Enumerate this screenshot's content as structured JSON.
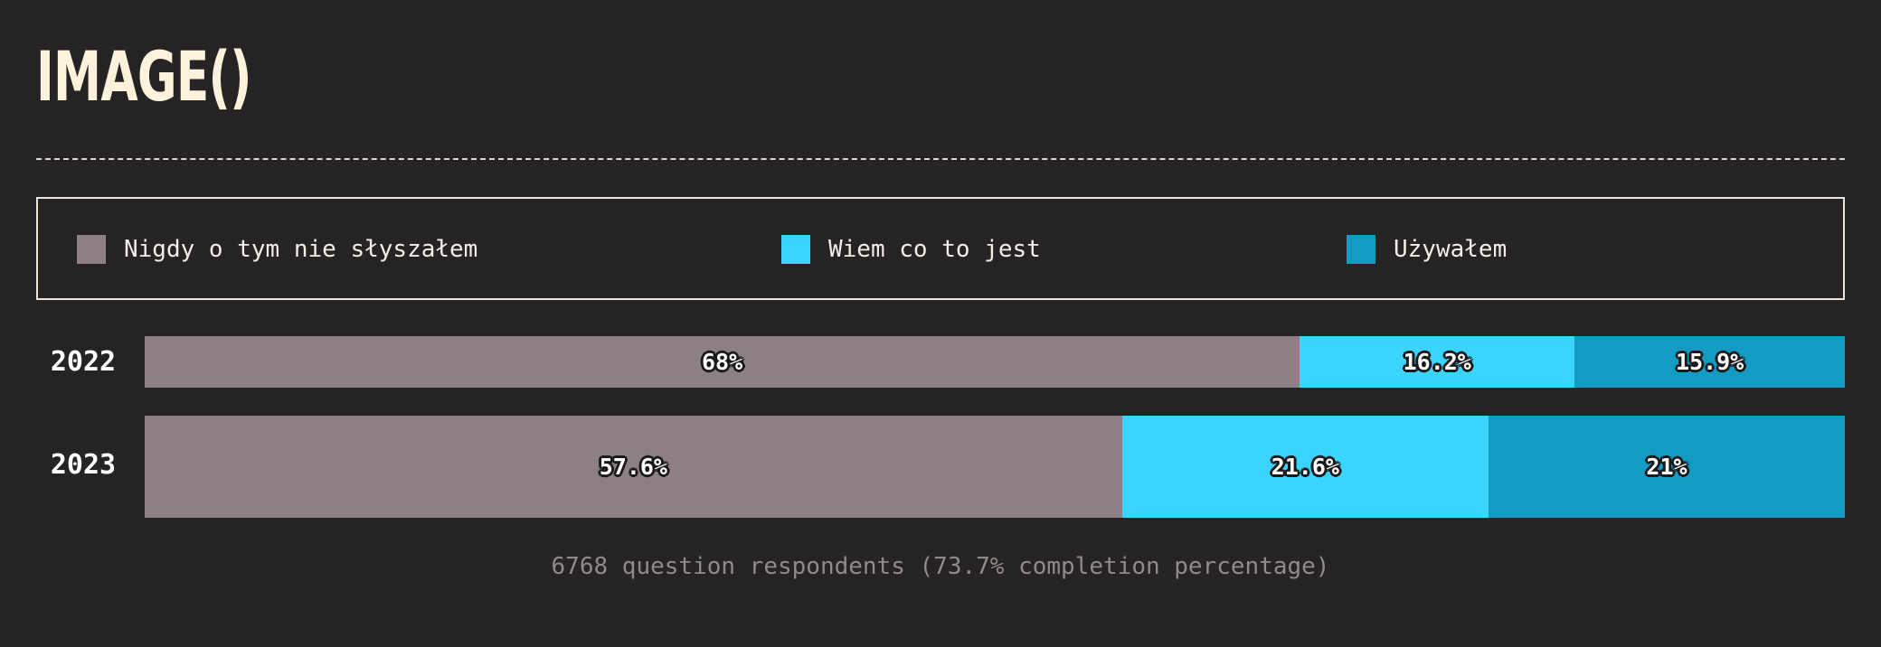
{
  "page": {
    "title": "IMAGE()",
    "footer": "6768 question respondents (73.7% completion percentage)"
  },
  "colors": {
    "background": "#262324",
    "never_heard": "#8c8085",
    "know_what_it_is": "#3bd4ff",
    "used": "#139bc4"
  },
  "chart_data": {
    "type": "bar",
    "orientation": "horizontal",
    "stacked": true,
    "categories": [
      "2022",
      "2023"
    ],
    "series": [
      {
        "name": "Nigdy o tym nie słyszałem",
        "values": [
          68,
          57.6
        ],
        "labels": [
          "68%",
          "57.6%"
        ],
        "color": "#8c8085"
      },
      {
        "name": "Wiem co to jest",
        "values": [
          16.2,
          21.6
        ],
        "labels": [
          "16.2%",
          "21.6%"
        ],
        "color": "#3bd4ff"
      },
      {
        "name": "Używałem",
        "values": [
          15.9,
          21
        ],
        "labels": [
          "15.9%",
          "21%"
        ],
        "color": "#139bc4"
      }
    ],
    "xlim": [
      0,
      100
    ],
    "grid": false,
    "legend": "top"
  }
}
